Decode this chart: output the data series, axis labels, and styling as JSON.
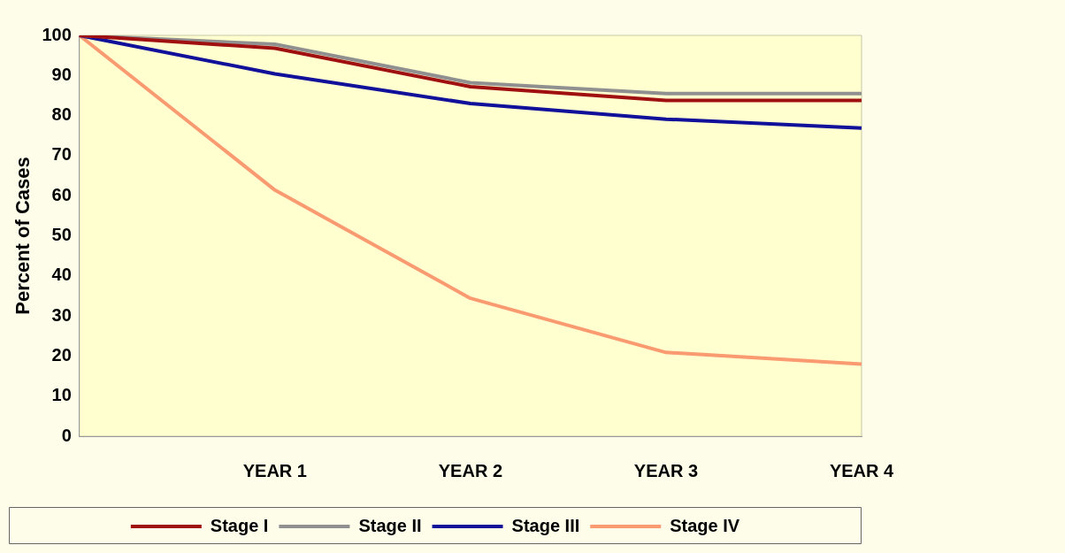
{
  "chart_data": {
    "type": "line",
    "ylabel": "Percent of Cases",
    "categories": [
      null,
      "YEAR 1",
      "YEAR 2",
      "YEAR 3",
      "YEAR 4"
    ],
    "series": [
      {
        "name": "Stage I",
        "color": "#a01010",
        "values": [
          100,
          96.8,
          87.2,
          83.8,
          83.8
        ]
      },
      {
        "name": "Stage II",
        "color": "#909090",
        "values": [
          100,
          97.8,
          88.2,
          85.5,
          85.5
        ]
      },
      {
        "name": "Stage III",
        "color": "#10109a",
        "values": [
          100,
          90.4,
          83,
          79.1,
          76.9
        ]
      },
      {
        "name": "Stage IV",
        "color": "#fa9a70",
        "values": [
          100,
          61.4,
          34.4,
          20.9,
          18
        ]
      }
    ],
    "ylim": [
      0,
      100
    ],
    "yticks": [
      0,
      10,
      20,
      30,
      40,
      50,
      60,
      70,
      80,
      90,
      100
    ],
    "grid": false,
    "legend": "bottom",
    "marker": "none",
    "line_style": "solid"
  }
}
